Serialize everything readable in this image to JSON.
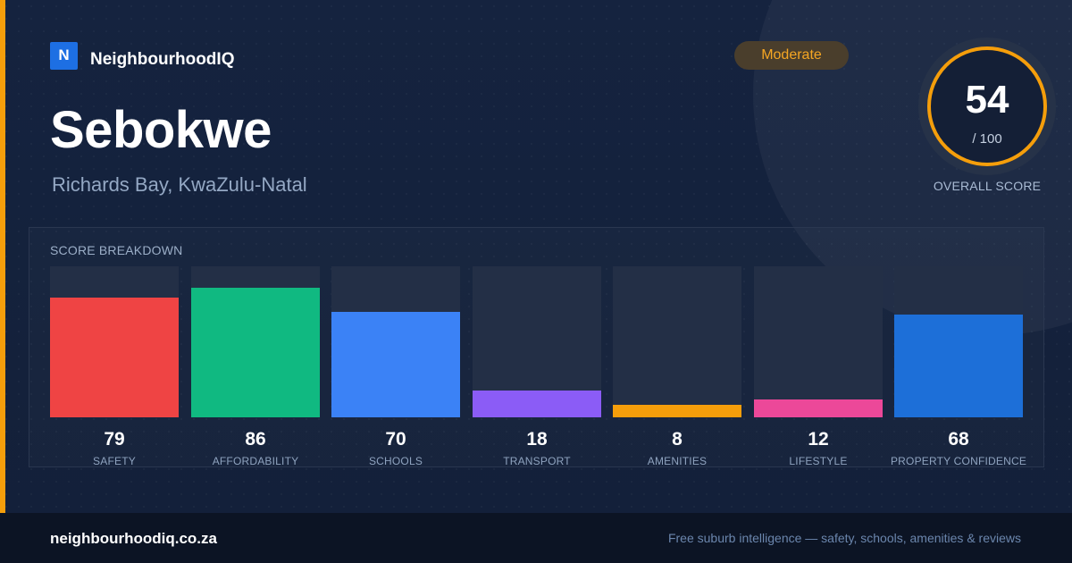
{
  "brand": {
    "icon_letter": "N",
    "name": "NeighbourhoodIQ",
    "color": "#1d6fe3"
  },
  "suburb": {
    "name": "Sebokwe",
    "location": "Richards Bay, KwaZulu-Natal"
  },
  "rating_badge": {
    "label": "Moderate",
    "color": "#f5a623"
  },
  "overall_score": {
    "value": "54",
    "max": "/ 100",
    "fraction": 0.54,
    "label": "OVERALL SCORE",
    "ring_color": "#f59e0b"
  },
  "breakdown": {
    "title": "SCORE BREAKDOWN",
    "categories": [
      {
        "label": "SAFETY",
        "value": 79,
        "color": "#ef4444"
      },
      {
        "label": "AFFORDABILITY",
        "value": 86,
        "color": "#10b981"
      },
      {
        "label": "SCHOOLS",
        "value": 70,
        "color": "#3b82f6"
      },
      {
        "label": "TRANSPORT",
        "value": 18,
        "color": "#8b5cf6"
      },
      {
        "label": "AMENITIES",
        "value": 8,
        "color": "#f59e0b"
      },
      {
        "label": "LIFESTYLE",
        "value": 12,
        "color": "#ec4899"
      },
      {
        "label": "PROPERTY CONFIDENCE",
        "value": 68,
        "color": "#1d6fd8"
      }
    ]
  },
  "footer": {
    "domain": "neighbourhoodiq.co.za",
    "tagline": "Free suburb intelligence — safety, schools, amenities & reviews"
  },
  "accent_color": "#f59e0b"
}
